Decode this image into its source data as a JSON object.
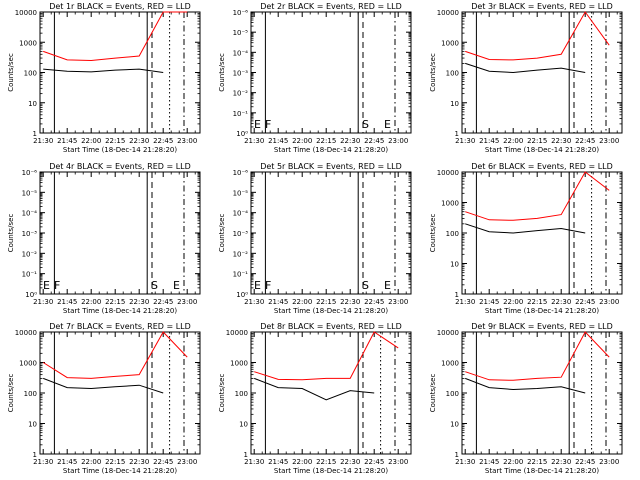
{
  "figure": {
    "x_axis_title": "Start Time (18-Dec-14 21:28:20)"
  },
  "colors": {
    "events": "#000000",
    "lld": "#ff0000",
    "axis": "#000000"
  },
  "chart_data": [
    {
      "type": "line",
      "title": "Det 1r BLACK = Events, RED = LLD",
      "ylabel": "Counts/sec",
      "yscale": "log",
      "ylim": [
        1,
        10000
      ],
      "yticks": [
        "1",
        "10",
        "100",
        "1000",
        "10000"
      ],
      "x": [
        "21:30",
        "21:45",
        "22:00",
        "22:15",
        "22:30",
        "22:45",
        "23:00"
      ],
      "series": [
        {
          "name": "Events",
          "color": "#000000",
          "values": [
            130,
            110,
            105,
            120,
            130,
            100,
            null
          ]
        },
        {
          "name": "LLD",
          "color": "#ff0000",
          "values": [
            500,
            260,
            250,
            300,
            350,
            10000,
            10000
          ]
        }
      ],
      "vlines": [
        {
          "x": "21:37",
          "style": "solid"
        },
        {
          "x": "22:35",
          "style": "solid"
        },
        {
          "x": "22:38",
          "style": "dashed"
        },
        {
          "x": "22:49",
          "style": "dotted"
        },
        {
          "x": "22:58",
          "style": "dashdot"
        }
      ],
      "markers": []
    },
    {
      "type": "line",
      "title": "Det 2r BLACK = Events, RED = LLD",
      "ylabel": "Counts/sec",
      "yscale": "log",
      "ylim": [
        1,
        1e-06
      ],
      "yticks": [
        "10⁰",
        "10⁻¹",
        "10⁻²",
        "10⁻³",
        "10⁻⁴",
        "10⁻⁵",
        "10⁻⁶"
      ],
      "x": [
        "21:30",
        "21:45",
        "22:00",
        "22:15",
        "22:30",
        "22:45",
        "23:00"
      ],
      "series": [],
      "vlines": [
        {
          "x": "21:37",
          "style": "solid"
        },
        {
          "x": "22:35",
          "style": "solid"
        },
        {
          "x": "22:38",
          "style": "dashed"
        },
        {
          "x": "22:58",
          "style": "dashdot"
        }
      ],
      "markers": [
        "E",
        "F",
        "S",
        "E"
      ]
    },
    {
      "type": "line",
      "title": "Det 3r BLACK = Events, RED = LLD",
      "ylabel": "Counts/sec",
      "yscale": "log",
      "ylim": [
        1,
        10000
      ],
      "yticks": [
        "1",
        "10",
        "100",
        "1000",
        "10000"
      ],
      "x": [
        "21:30",
        "21:45",
        "22:00",
        "22:15",
        "22:30",
        "22:45",
        "23:00"
      ],
      "series": [
        {
          "name": "Events",
          "color": "#000000",
          "values": [
            200,
            110,
            100,
            120,
            140,
            100,
            null
          ]
        },
        {
          "name": "LLD",
          "color": "#ff0000",
          "values": [
            500,
            270,
            260,
            300,
            400,
            10000,
            800
          ]
        }
      ],
      "vlines": [
        {
          "x": "21:37",
          "style": "solid"
        },
        {
          "x": "22:35",
          "style": "solid"
        },
        {
          "x": "22:38",
          "style": "dashed"
        },
        {
          "x": "22:49",
          "style": "dotted"
        },
        {
          "x": "22:58",
          "style": "dashdot"
        }
      ],
      "markers": []
    },
    {
      "type": "line",
      "title": "Det 4r BLACK = Events, RED = LLD",
      "ylabel": "Counts/sec",
      "yscale": "log",
      "ylim": [
        1,
        1e-06
      ],
      "yticks": [
        "10⁰",
        "10⁻¹",
        "10⁻²",
        "10⁻³",
        "10⁻⁴",
        "10⁻⁵",
        "10⁻⁶"
      ],
      "x": [
        "21:30",
        "21:45",
        "22:00",
        "22:15",
        "22:30",
        "22:45",
        "23:00"
      ],
      "series": [],
      "vlines": [
        {
          "x": "21:37",
          "style": "solid"
        },
        {
          "x": "22:35",
          "style": "solid"
        },
        {
          "x": "22:38",
          "style": "dashed"
        },
        {
          "x": "22:58",
          "style": "dashdot"
        }
      ],
      "markers": [
        "E",
        "F",
        "S",
        "E"
      ]
    },
    {
      "type": "line",
      "title": "Det 5r BLACK = Events, RED = LLD",
      "ylabel": "Counts/sec",
      "yscale": "log",
      "ylim": [
        1,
        1e-06
      ],
      "yticks": [
        "10⁰",
        "10⁻¹",
        "10⁻²",
        "10⁻³",
        "10⁻⁴",
        "10⁻⁵",
        "10⁻⁶"
      ],
      "x": [
        "21:30",
        "21:45",
        "22:00",
        "22:15",
        "22:30",
        "22:45",
        "23:00"
      ],
      "series": [],
      "vlines": [
        {
          "x": "21:37",
          "style": "solid"
        },
        {
          "x": "22:35",
          "style": "solid"
        },
        {
          "x": "22:38",
          "style": "dashed"
        },
        {
          "x": "22:58",
          "style": "dashdot"
        }
      ],
      "markers": [
        "E",
        "F",
        "S",
        "E"
      ]
    },
    {
      "type": "line",
      "title": "Det 6r BLACK = Events, RED = LLD",
      "ylabel": "Counts/sec",
      "yscale": "log",
      "ylim": [
        1,
        10000
      ],
      "yticks": [
        "1",
        "10",
        "100",
        "1000",
        "10000"
      ],
      "x": [
        "21:30",
        "21:45",
        "22:00",
        "22:15",
        "22:30",
        "22:45",
        "23:00"
      ],
      "series": [
        {
          "name": "Events",
          "color": "#000000",
          "values": [
            200,
            110,
            100,
            120,
            140,
            100,
            null
          ]
        },
        {
          "name": "LLD",
          "color": "#ff0000",
          "values": [
            500,
            270,
            260,
            300,
            400,
            10000,
            2500
          ]
        }
      ],
      "vlines": [
        {
          "x": "21:37",
          "style": "solid"
        },
        {
          "x": "22:35",
          "style": "solid"
        },
        {
          "x": "22:38",
          "style": "dashed"
        },
        {
          "x": "22:49",
          "style": "dotted"
        },
        {
          "x": "22:58",
          "style": "dashdot"
        }
      ],
      "markers": []
    },
    {
      "type": "line",
      "title": "Det 7r BLACK = Events, RED = LLD",
      "ylabel": "Counts/sec",
      "yscale": "log",
      "ylim": [
        1,
        10000
      ],
      "yticks": [
        "1",
        "10",
        "100",
        "1000",
        "10000"
      ],
      "x": [
        "21:30",
        "21:45",
        "22:00",
        "22:15",
        "22:30",
        "22:45",
        "23:00"
      ],
      "series": [
        {
          "name": "Events",
          "color": "#000000",
          "values": [
            300,
            150,
            140,
            160,
            180,
            100,
            null
          ]
        },
        {
          "name": "LLD",
          "color": "#ff0000",
          "values": [
            1000,
            320,
            300,
            350,
            400,
            10000,
            1500
          ]
        }
      ],
      "vlines": [
        {
          "x": "21:37",
          "style": "solid"
        },
        {
          "x": "22:35",
          "style": "solid"
        },
        {
          "x": "22:38",
          "style": "dashed"
        },
        {
          "x": "22:49",
          "style": "dotted"
        },
        {
          "x": "22:58",
          "style": "dashdot"
        }
      ],
      "markers": []
    },
    {
      "type": "line",
      "title": "Det 8r BLACK = Events, RED = LLD",
      "ylabel": "Counts/sec",
      "yscale": "log",
      "ylim": [
        1,
        10000
      ],
      "yticks": [
        "1",
        "10",
        "100",
        "1000",
        "10000"
      ],
      "x": [
        "21:30",
        "21:45",
        "22:00",
        "22:15",
        "22:30",
        "22:45",
        "23:00"
      ],
      "series": [
        {
          "name": "Events",
          "color": "#000000",
          "values": [
            300,
            150,
            140,
            60,
            120,
            100,
            null
          ]
        },
        {
          "name": "LLD",
          "color": "#ff0000",
          "values": [
            500,
            280,
            270,
            300,
            300,
            10000,
            3000
          ]
        }
      ],
      "vlines": [
        {
          "x": "21:37",
          "style": "solid"
        },
        {
          "x": "22:35",
          "style": "solid"
        },
        {
          "x": "22:38",
          "style": "dashed"
        },
        {
          "x": "22:49",
          "style": "dotted"
        },
        {
          "x": "22:58",
          "style": "dashdot"
        }
      ],
      "markers": []
    },
    {
      "type": "line",
      "title": "Det 9r BLACK = Events, RED = LLD",
      "ylabel": "Counts/sec",
      "yscale": "log",
      "ylim": [
        1,
        10000
      ],
      "yticks": [
        "1",
        "10",
        "100",
        "1000",
        "10000"
      ],
      "x": [
        "21:30",
        "21:45",
        "22:00",
        "22:15",
        "22:30",
        "22:45",
        "23:00"
      ],
      "series": [
        {
          "name": "Events",
          "color": "#000000",
          "values": [
            300,
            150,
            130,
            140,
            160,
            100,
            null
          ]
        },
        {
          "name": "LLD",
          "color": "#ff0000",
          "values": [
            500,
            270,
            260,
            300,
            330,
            10000,
            1500
          ]
        }
      ],
      "vlines": [
        {
          "x": "21:37",
          "style": "solid"
        },
        {
          "x": "22:35",
          "style": "solid"
        },
        {
          "x": "22:38",
          "style": "dashed"
        },
        {
          "x": "22:49",
          "style": "dotted"
        },
        {
          "x": "22:58",
          "style": "dashdot"
        }
      ],
      "markers": []
    }
  ]
}
